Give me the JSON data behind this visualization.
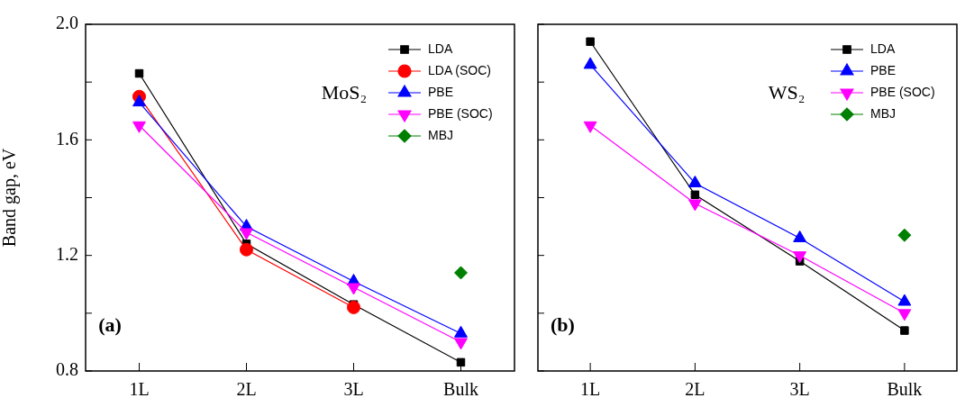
{
  "chart_data": [
    {
      "type": "line",
      "ylabel": "Band gap, eV",
      "categories": [
        "1L",
        "2L",
        "3L",
        "Bulk"
      ],
      "ylim": [
        0.8,
        2.0
      ],
      "yticks": [
        {
          "value": 0.8,
          "label": "0.8"
        },
        {
          "value": 1.0,
          "label": null
        },
        {
          "value": 1.2,
          "label": "1.2"
        },
        {
          "value": 1.4,
          "label": null
        },
        {
          "value": 1.6,
          "label": "1.6"
        },
        {
          "value": 1.8,
          "label": null
        },
        {
          "value": 2.0,
          "label": "2.0"
        }
      ],
      "grid": false,
      "legend": "top right",
      "annotations": [
        "MoS₂",
        "(a)"
      ],
      "series": [
        {
          "name": "LDA",
          "color": "#000000",
          "marker": "square",
          "values": [
            1.83,
            1.24,
            1.03,
            0.83
          ]
        },
        {
          "name": "LDA (SOC)",
          "color": "#ff0000",
          "marker": "circle",
          "values": [
            1.75,
            1.22,
            1.02,
            null
          ]
        },
        {
          "name": "PBE",
          "color": "#0000ff",
          "marker": "triangle",
          "values": [
            1.73,
            1.3,
            1.11,
            0.93
          ]
        },
        {
          "name": "PBE (SOC)",
          "color": "#ff00ff",
          "marker": "triangle-down",
          "values": [
            1.65,
            1.28,
            1.09,
            0.9
          ]
        },
        {
          "name": "MBJ",
          "color": "#008000",
          "marker": "diamond",
          "values": [
            null,
            null,
            null,
            1.14
          ]
        }
      ]
    },
    {
      "type": "line",
      "categories": [
        "1L",
        "2L",
        "3L",
        "Bulk"
      ],
      "ylim": [
        0.8,
        2.0
      ],
      "yticks": [
        {
          "value": 0.8,
          "label": null
        },
        {
          "value": 1.0,
          "label": null
        },
        {
          "value": 1.2,
          "label": null
        },
        {
          "value": 1.4,
          "label": null
        },
        {
          "value": 1.6,
          "label": null
        },
        {
          "value": 1.8,
          "label": null
        },
        {
          "value": 2.0,
          "label": null
        }
      ],
      "tick_labels": "x",
      "grid": false,
      "legend": "top right",
      "annotations": [
        "WS₂",
        "(b)"
      ],
      "series": [
        {
          "name": "LDA",
          "color": "#000000",
          "marker": "square",
          "values": [
            1.94,
            1.41,
            1.18,
            0.94
          ]
        },
        {
          "name": "PBE",
          "color": "#0000ff",
          "marker": "triangle",
          "values": [
            1.86,
            1.45,
            1.26,
            1.04
          ]
        },
        {
          "name": "PBE (SOC)",
          "color": "#ff00ff",
          "marker": "triangle-down",
          "values": [
            1.65,
            1.38,
            1.2,
            1.0
          ]
        },
        {
          "name": "MBJ",
          "color": "#008000",
          "marker": "diamond",
          "values": [
            null,
            null,
            null,
            1.27
          ]
        }
      ]
    }
  ]
}
